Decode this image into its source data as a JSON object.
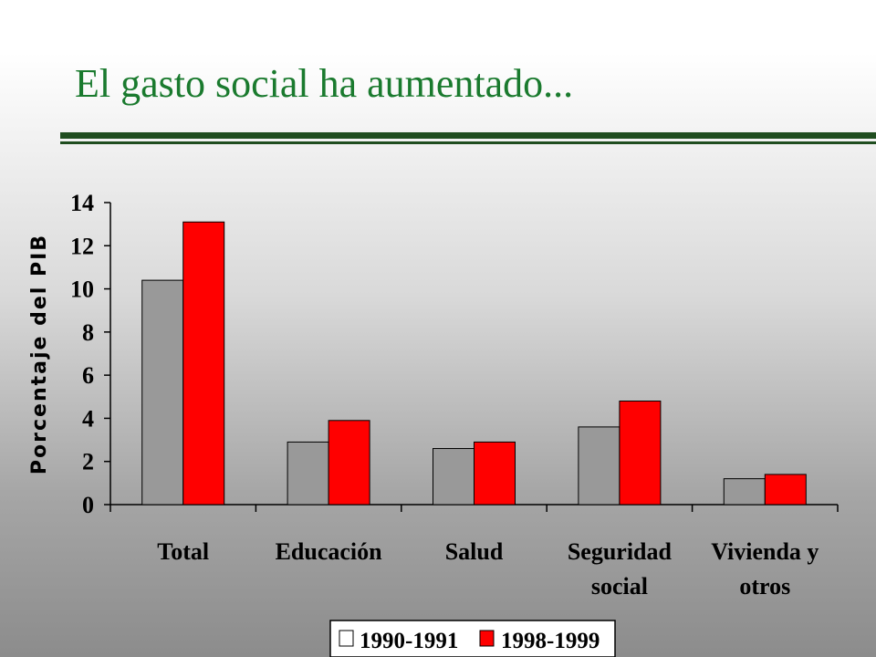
{
  "slide": {
    "title": "El gasto social ha aumentado..."
  },
  "colors": {
    "title": "#1a7a2e",
    "rule": "#1f4d1f",
    "series_1990": "#999999",
    "series_1998": "#ff0000"
  },
  "chart_data": {
    "type": "bar",
    "categories": [
      [
        "Total"
      ],
      [
        "Educación"
      ],
      [
        "Salud"
      ],
      [
        "Seguridad",
        "social"
      ],
      [
        "Vivienda y",
        "otros"
      ]
    ],
    "series": [
      {
        "name": "1990-1991",
        "values": [
          10.4,
          2.9,
          2.6,
          3.6,
          1.2
        ],
        "color": "#999999"
      },
      {
        "name": "1998-1999",
        "values": [
          13.1,
          3.9,
          2.9,
          4.8,
          1.4
        ],
        "color": "#ff0000"
      }
    ],
    "ylabel": "Porcentaje del PIB",
    "ylim": [
      0,
      14
    ],
    "yticks": [
      0,
      2,
      4,
      6,
      8,
      10,
      12,
      14
    ],
    "legend_position": "bottom",
    "grid": false
  }
}
